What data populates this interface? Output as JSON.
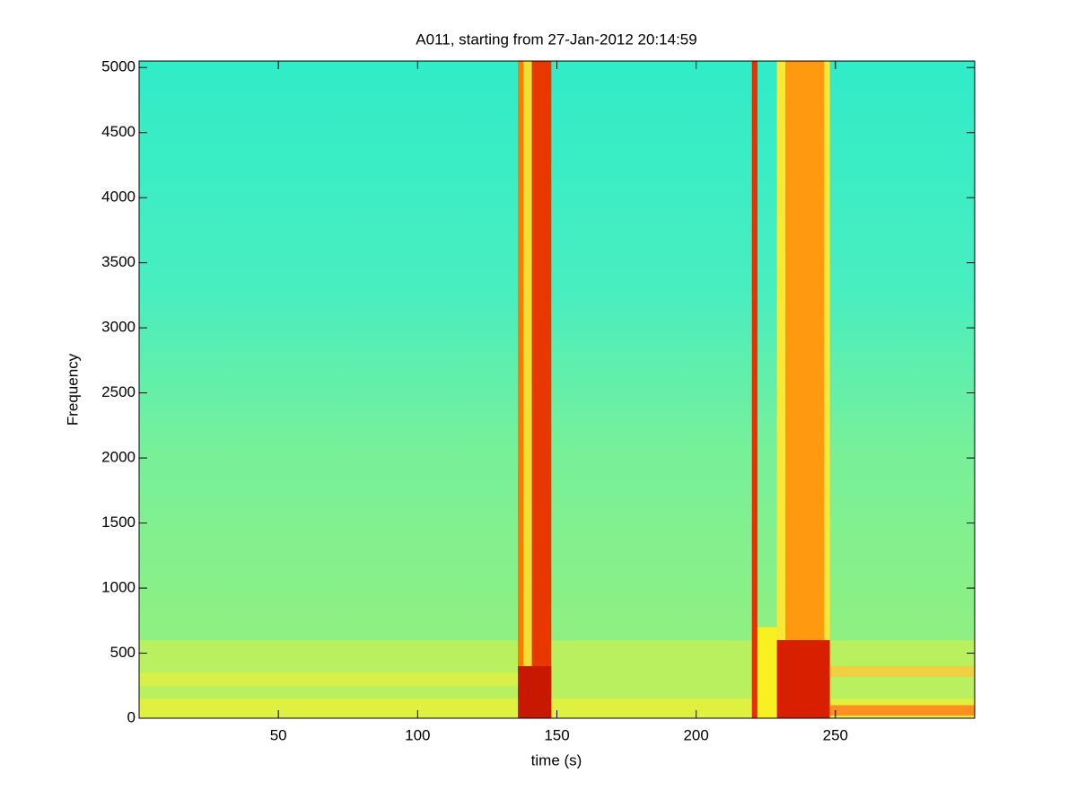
{
  "chart_data": {
    "type": "spectrogram",
    "title": "A011, starting from 27-Jan-2012 20:14:59",
    "xlabel": "time (s)",
    "ylabel": "Frequency",
    "xlim": [
      0,
      300
    ],
    "ylim": [
      0,
      5050
    ],
    "xticks": [
      50,
      100,
      150,
      200,
      250
    ],
    "yticks": [
      0,
      500,
      1000,
      1500,
      2000,
      2500,
      3000,
      3500,
      4000,
      4500,
      5000
    ],
    "regions": [
      {
        "x": [
          0,
          300
        ],
        "y": [
          0,
          600
        ],
        "color": "#b8f060"
      },
      {
        "x": [
          0,
          300
        ],
        "y": [
          0,
          150
        ],
        "color": "#e0f040"
      },
      {
        "x": [
          0,
          136
        ],
        "y": [
          250,
          350
        ],
        "color": "#d8f048"
      },
      {
        "x": [
          136,
          138
        ],
        "y": [
          0,
          5050
        ],
        "color": "#ff7a00"
      },
      {
        "x": [
          138,
          141
        ],
        "y": [
          0,
          5050
        ],
        "color": "#f0e030"
      },
      {
        "x": [
          141,
          148
        ],
        "y": [
          0,
          5050
        ],
        "color": "#e83800"
      },
      {
        "x": [
          136,
          148
        ],
        "y": [
          0,
          400
        ],
        "color": "#c81800"
      },
      {
        "x": [
          220,
          222
        ],
        "y": [
          0,
          5050
        ],
        "color": "#e83000"
      },
      {
        "x": [
          222,
          229
        ],
        "y": [
          0,
          700
        ],
        "color": "#f8f020"
      },
      {
        "x": [
          229,
          248
        ],
        "y": [
          0,
          5050
        ],
        "color": "#f8e838"
      },
      {
        "x": [
          232,
          246
        ],
        "y": [
          0,
          5050
        ],
        "color": "#ff9a10"
      },
      {
        "x": [
          229,
          248
        ],
        "y": [
          0,
          600
        ],
        "color": "#d82000"
      },
      {
        "x": [
          248,
          300
        ],
        "y": [
          320,
          400
        ],
        "color": "#f0d040"
      },
      {
        "x": [
          248,
          300
        ],
        "y": [
          20,
          100
        ],
        "color": "#ff9020"
      }
    ]
  }
}
